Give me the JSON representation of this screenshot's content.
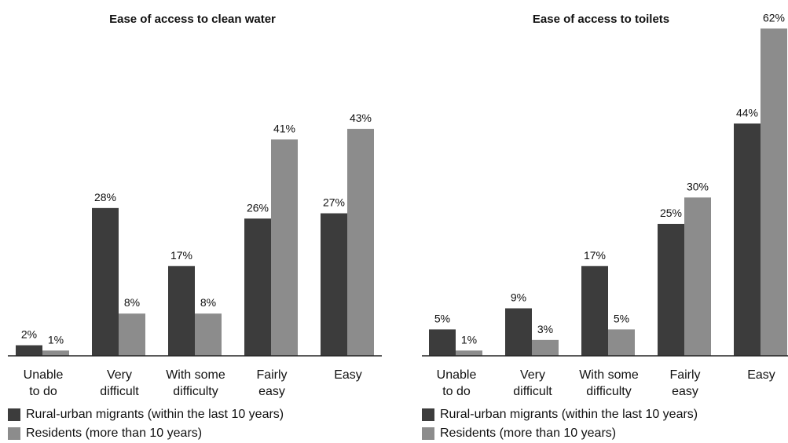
{
  "chart_data": [
    {
      "type": "bar",
      "title": "Ease of access to clean water",
      "categories": [
        [
          "Unable",
          "to do"
        ],
        [
          "Very",
          "difficult"
        ],
        [
          "With some",
          "difficulty"
        ],
        [
          "Fairly",
          "easy"
        ],
        [
          "Easy"
        ]
      ],
      "series": [
        {
          "name": "Rural-urban migrants (within the last 10 years)",
          "values": [
            2,
            28,
            17,
            26,
            27
          ],
          "labels": [
            "2%",
            "28%",
            "17%",
            "26%",
            "27%"
          ],
          "color": "#3c3c3c"
        },
        {
          "name": "Residents (more than 10 years)",
          "values": [
            1,
            8,
            8,
            41,
            43
          ],
          "labels": [
            "1%",
            "8%",
            "8%",
            "41%",
            "43%"
          ],
          "color": "#8c8c8c"
        }
      ],
      "ylim": [
        0,
        62
      ]
    },
    {
      "type": "bar",
      "title": "Ease of access to toilets",
      "categories": [
        [
          "Unable",
          "to do"
        ],
        [
          "Very",
          "difficult"
        ],
        [
          "With some",
          "difficulty"
        ],
        [
          "Fairly",
          "easy"
        ],
        [
          "Easy"
        ]
      ],
      "series": [
        {
          "name": "Rural-urban migrants (within the last 10 years)",
          "values": [
            5,
            9,
            17,
            25,
            44
          ],
          "labels": [
            "5%",
            "9%",
            "17%",
            "25%",
            "44%"
          ],
          "color": "#3c3c3c"
        },
        {
          "name": "Residents (more than 10 years)",
          "values": [
            1,
            3,
            5,
            30,
            62
          ],
          "labels": [
            "1%",
            "3%",
            "5%",
            "30%",
            "62%"
          ],
          "color": "#8c8c8c"
        }
      ],
      "ylim": [
        0,
        62
      ]
    }
  ]
}
